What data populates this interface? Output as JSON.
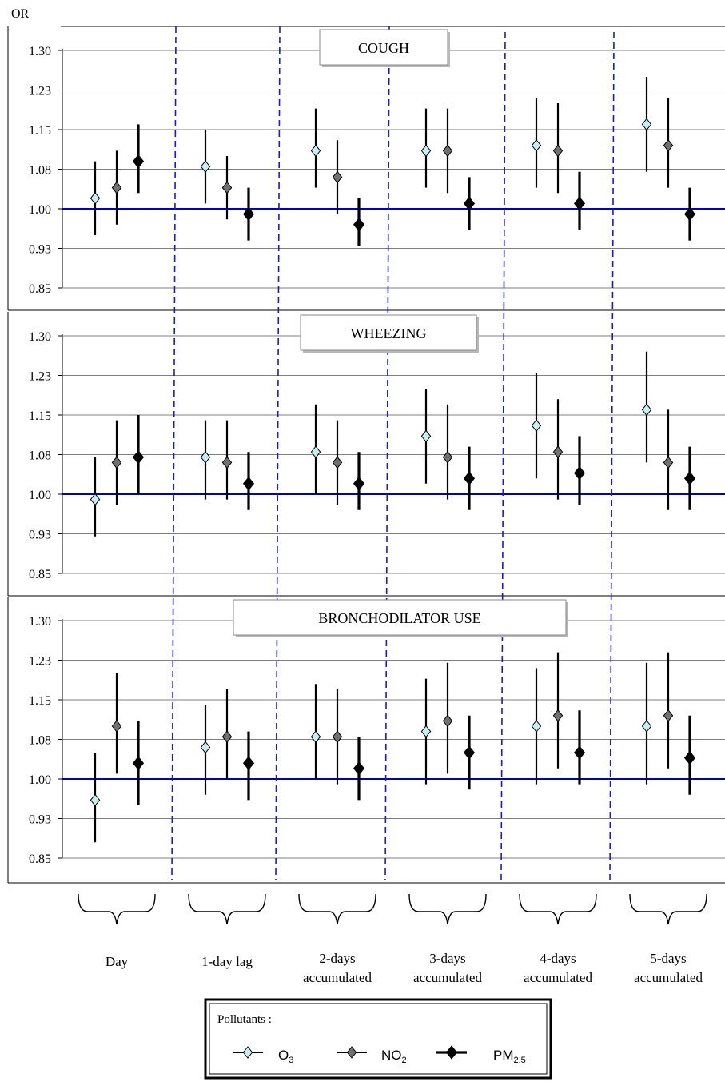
{
  "chart_data": {
    "type": "scatter",
    "y_axis_title": "OR",
    "y_ticks": [
      "1.30",
      "1.23",
      "1.15",
      "1.08",
      "1.00",
      "0.93",
      "0.85"
    ],
    "y_tick_values": [
      1.3,
      1.225,
      1.15,
      1.075,
      1.0,
      0.925,
      0.85
    ],
    "ylim": [
      0.85,
      1.3
    ],
    "reference_line": 1.0,
    "grid": true,
    "categories": [
      {
        "label": "Day"
      },
      {
        "label": "1-day lag"
      },
      {
        "label": "2-days",
        "label2": "accumulated"
      },
      {
        "label": "3-days",
        "label2": "accumulated"
      },
      {
        "label": "4-days",
        "label2": "accumulated"
      },
      {
        "label": "5-days",
        "label2": "accumulated"
      }
    ],
    "series_order": [
      "O3",
      "NO2",
      "PM2.5"
    ],
    "colors": {
      "O3": "#c8eef2",
      "NO2": "#707070",
      "PM2.5": "#000000",
      "reference": "#0000cc",
      "divider": "#1a1acc"
    },
    "panels": [
      {
        "title": "COUGH",
        "data": [
          {
            "O3": [
              1.02,
              0.95,
              1.09
            ],
            "NO2": [
              1.04,
              0.97,
              1.11
            ],
            "PM2.5": [
              1.09,
              1.03,
              1.16
            ]
          },
          {
            "O3": [
              1.08,
              1.01,
              1.15
            ],
            "NO2": [
              1.04,
              0.98,
              1.1
            ],
            "PM2.5": [
              0.99,
              0.94,
              1.04
            ]
          },
          {
            "O3": [
              1.11,
              1.04,
              1.19
            ],
            "NO2": [
              1.06,
              0.99,
              1.13
            ],
            "PM2.5": [
              0.97,
              0.93,
              1.02
            ]
          },
          {
            "O3": [
              1.11,
              1.04,
              1.19
            ],
            "NO2": [
              1.11,
              1.03,
              1.19
            ],
            "PM2.5": [
              1.01,
              0.96,
              1.06
            ]
          },
          {
            "O3": [
              1.12,
              1.04,
              1.21
            ],
            "NO2": [
              1.11,
              1.03,
              1.2
            ],
            "PM2.5": [
              1.01,
              0.96,
              1.07
            ]
          },
          {
            "O3": [
              1.16,
              1.07,
              1.25
            ],
            "NO2": [
              1.12,
              1.04,
              1.21
            ],
            "PM2.5": [
              0.99,
              0.94,
              1.04
            ]
          }
        ]
      },
      {
        "title": "WHEEZING",
        "data": [
          {
            "O3": [
              0.99,
              0.92,
              1.07
            ],
            "NO2": [
              1.06,
              0.98,
              1.14
            ],
            "PM2.5": [
              1.07,
              1.0,
              1.15
            ]
          },
          {
            "O3": [
              1.07,
              0.99,
              1.14
            ],
            "NO2": [
              1.06,
              0.99,
              1.14
            ],
            "PM2.5": [
              1.02,
              0.97,
              1.08
            ]
          },
          {
            "O3": [
              1.08,
              1.0,
              1.17
            ],
            "NO2": [
              1.06,
              0.98,
              1.14
            ],
            "PM2.5": [
              1.02,
              0.97,
              1.08
            ]
          },
          {
            "O3": [
              1.11,
              1.02,
              1.2
            ],
            "NO2": [
              1.07,
              0.99,
              1.17
            ],
            "PM2.5": [
              1.03,
              0.97,
              1.09
            ]
          },
          {
            "O3": [
              1.13,
              1.03,
              1.23
            ],
            "NO2": [
              1.08,
              0.99,
              1.18
            ],
            "PM2.5": [
              1.04,
              0.98,
              1.11
            ]
          },
          {
            "O3": [
              1.16,
              1.06,
              1.27
            ],
            "NO2": [
              1.06,
              0.97,
              1.16
            ],
            "PM2.5": [
              1.03,
              0.97,
              1.09
            ]
          }
        ]
      },
      {
        "title": "BRONCHODILATOR USE",
        "data": [
          {
            "O3": [
              0.96,
              0.88,
              1.05
            ],
            "NO2": [
              1.1,
              1.01,
              1.2
            ],
            "PM2.5": [
              1.03,
              0.95,
              1.11
            ]
          },
          {
            "O3": [
              1.06,
              0.97,
              1.14
            ],
            "NO2": [
              1.08,
              1.0,
              1.17
            ],
            "PM2.5": [
              1.03,
              0.96,
              1.09
            ]
          },
          {
            "O3": [
              1.08,
              1.0,
              1.18
            ],
            "NO2": [
              1.08,
              0.99,
              1.17
            ],
            "PM2.5": [
              1.02,
              0.96,
              1.08
            ]
          },
          {
            "O3": [
              1.09,
              0.99,
              1.19
            ],
            "NO2": [
              1.11,
              1.01,
              1.22
            ],
            "PM2.5": [
              1.05,
              0.98,
              1.12
            ]
          },
          {
            "O3": [
              1.1,
              0.99,
              1.21
            ],
            "NO2": [
              1.12,
              1.02,
              1.24
            ],
            "PM2.5": [
              1.05,
              0.99,
              1.13
            ]
          },
          {
            "O3": [
              1.1,
              0.99,
              1.22
            ],
            "NO2": [
              1.12,
              1.02,
              1.24
            ],
            "PM2.5": [
              1.04,
              0.97,
              1.12
            ]
          }
        ]
      }
    ],
    "legend": {
      "title": "Pollutants :",
      "entries": [
        {
          "key": "O3",
          "base": "O",
          "sub": "3"
        },
        {
          "key": "NO2",
          "base": "NO",
          "sub": "2"
        },
        {
          "key": "PM2.5",
          "base": "PM",
          "sub": "2.5"
        }
      ],
      "placement": "bottom-center"
    }
  }
}
